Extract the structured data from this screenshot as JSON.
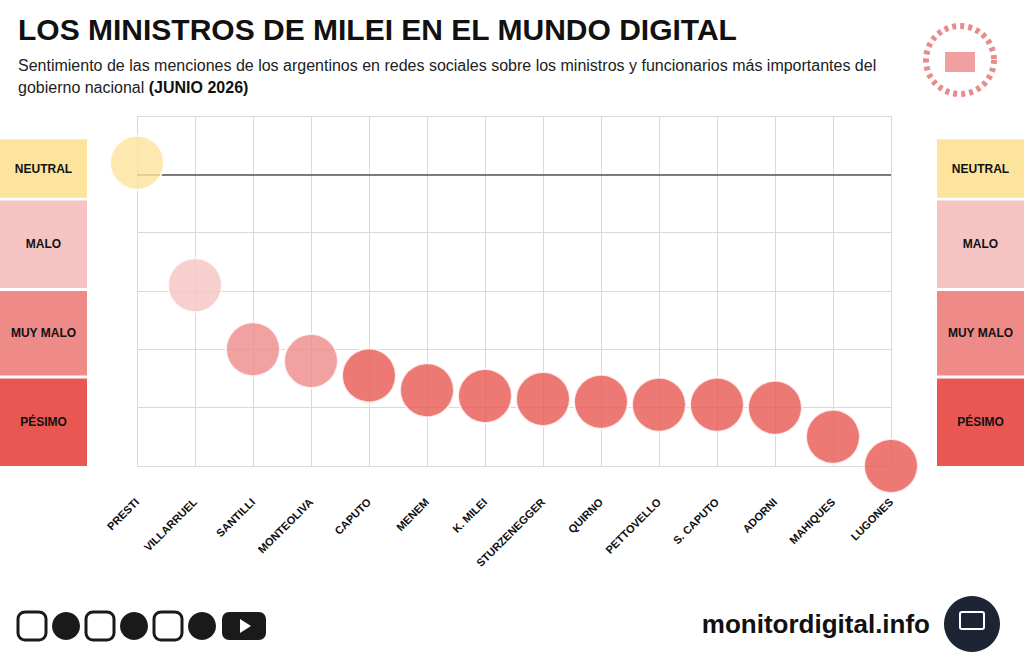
{
  "chart_data": {
    "type": "scatter",
    "title": "LOS MINISTROS DE MILEI EN EL MUNDO DIGITAL",
    "subtitle": "Sentimiento de las menciones de los argentinos en redes sociales sobre los ministros y funcionarios más importantes del gobierno nacional",
    "subtitle_bold": "(JUNIO 2026)",
    "source": "monitordigital.info",
    "categories": [
      "PRESTI",
      "VILLARRUEL",
      "SANTILLI",
      "MONTEOLIVA",
      "CAPUTO",
      "MENEM",
      "K. MILEI",
      "STURZENEGGER",
      "QUIRNO",
      "PETTOVELLO",
      "S. CAPUTO",
      "ADORNI",
      "MAHIQUES",
      "LUGONES"
    ],
    "values": [
      5.2,
      3.1,
      2.0,
      1.8,
      1.55,
      1.3,
      1.2,
      1.15,
      1.1,
      1.05,
      1.05,
      1.0,
      0.5,
      0.0
    ],
    "colors": [
      "#fde49c",
      "#f5c4c2",
      "#ee8a88",
      "#ee8a88",
      "#e85752",
      "#e85752",
      "#e85752",
      "#e85752",
      "#e85752",
      "#e85752",
      "#e85752",
      "#e85752",
      "#e85752",
      "#e85752"
    ],
    "ylim": [
      0,
      6
    ],
    "yticks": [
      0,
      1,
      2,
      3,
      4,
      5,
      6
    ],
    "grid": true,
    "tick_labels": "x",
    "reference_line": 5,
    "bands": [
      {
        "label": "NEUTRAL",
        "from": 4.6,
        "to": 5.6,
        "color": "#fde49c"
      },
      {
        "label": "MALO",
        "from": 3.05,
        "to": 4.55,
        "color": "#f5c4c2"
      },
      {
        "label": "MUY MALO",
        "from": 1.55,
        "to": 3.0,
        "color": "#ee8a88"
      },
      {
        "label": "PÉSIMO",
        "from": 0,
        "to": 1.5,
        "color": "#e85752"
      }
    ]
  }
}
